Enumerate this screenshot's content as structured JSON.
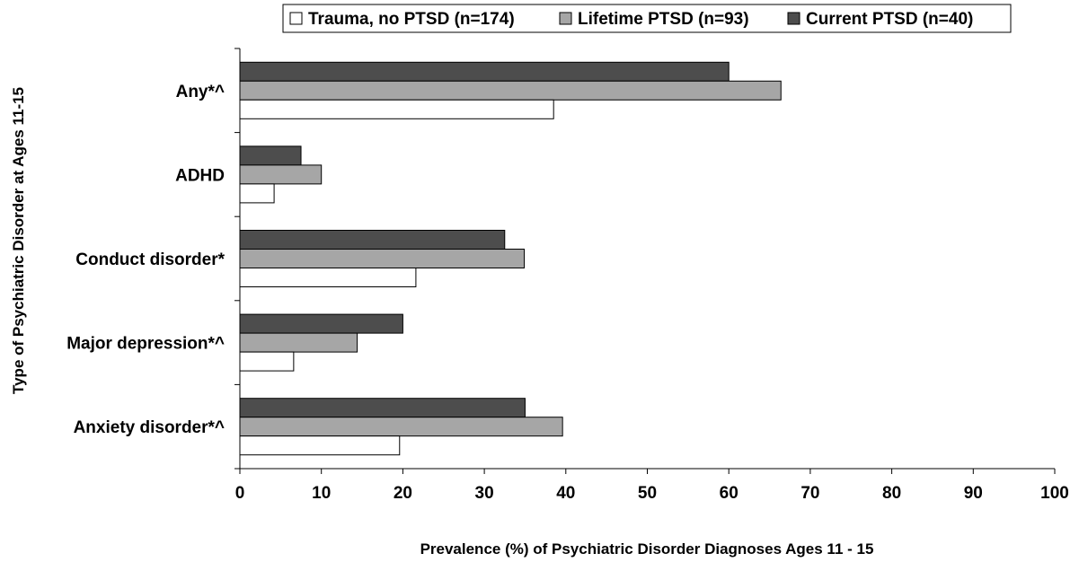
{
  "chart_data": {
    "type": "bar",
    "orientation": "horizontal",
    "categories": [
      "Any*^",
      "ADHD",
      "Conduct disorder*",
      "Major depression*^",
      "Anxiety disorder*^"
    ],
    "series": [
      {
        "name": "Trauma, no PTSD (n=174)",
        "color": "#ffffff",
        "values": [
          38.5,
          4.2,
          21.6,
          6.6,
          19.6
        ]
      },
      {
        "name": "Lifetime PTSD (n=93)",
        "color": "#a6a6a6",
        "values": [
          66.4,
          10.0,
          34.9,
          14.4,
          39.6
        ]
      },
      {
        "name": "Current PTSD (n=40)",
        "color": "#4d4d4d",
        "values": [
          60.0,
          7.5,
          32.5,
          20.0,
          35.0
        ]
      }
    ],
    "xlabel": "Prevalence (%) of Psychiatric Disorder Diagnoses Ages 11 - 15",
    "ylabel": "Type of Psychiatric Disorder at Ages 11-15",
    "xlim": [
      0,
      100
    ],
    "xticks": [
      "0",
      "10",
      "20",
      "30",
      "40",
      "50",
      "60",
      "70",
      "80",
      "90",
      "100"
    ],
    "grid": false,
    "legend_position": "top"
  }
}
